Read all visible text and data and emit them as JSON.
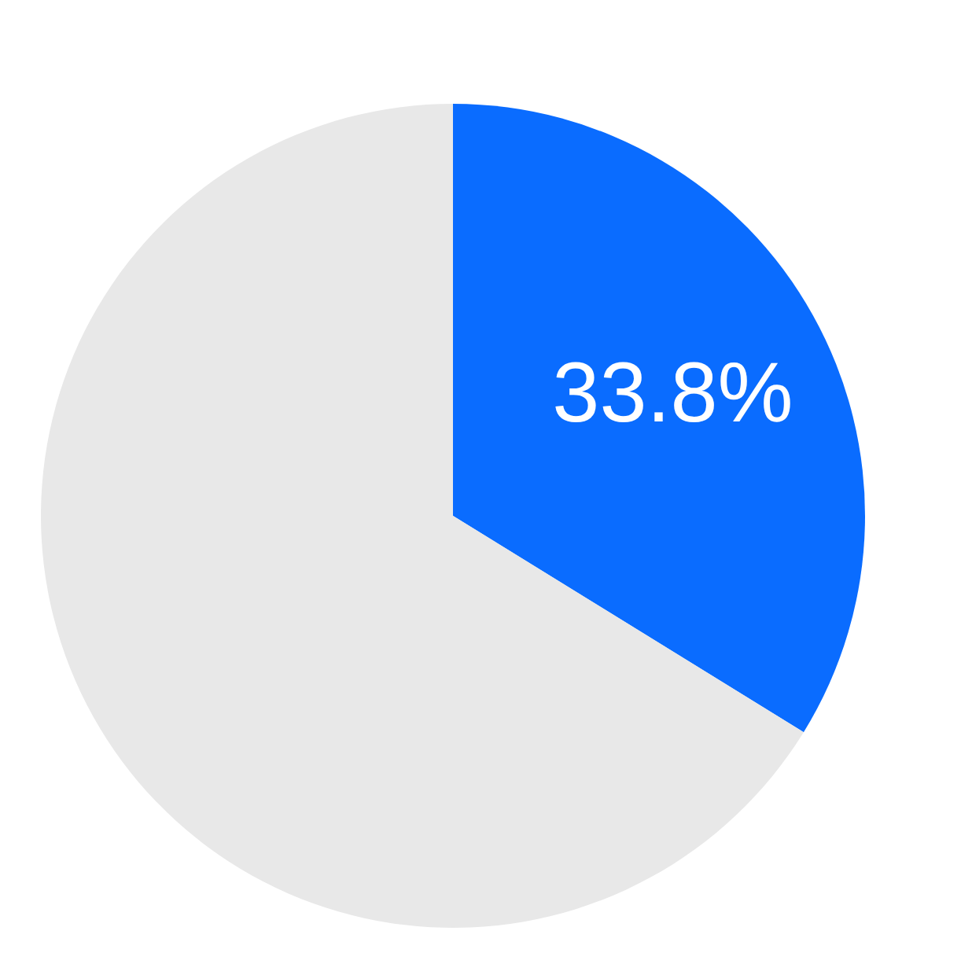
{
  "chart_data": {
    "type": "pie",
    "categories": [
      null,
      null
    ],
    "values": [
      33.8,
      66.2
    ],
    "colors": [
      "#0a6cff",
      "#e8e8e8"
    ],
    "value_labels": [
      "33.8%",
      null
    ]
  }
}
